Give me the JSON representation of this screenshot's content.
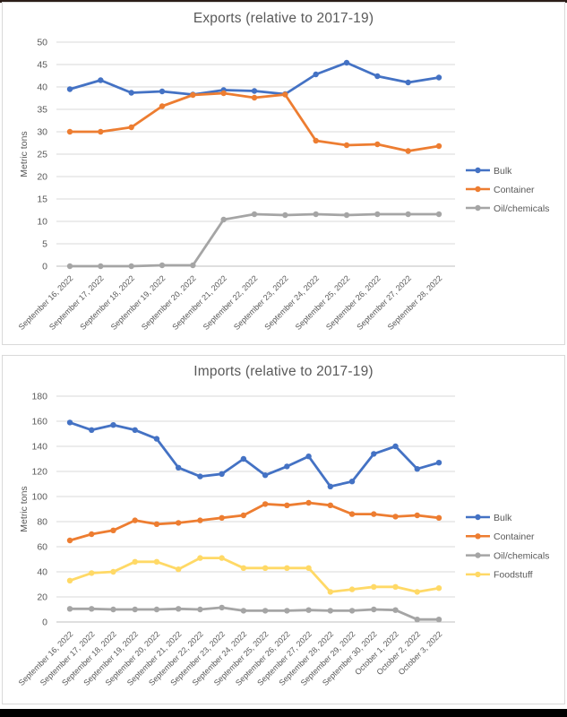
{
  "page": {
    "background": "#FFFFFF",
    "top_strip_color": "#2B1D18",
    "bottom_bar_color": "#000000",
    "panel_border_color": "#D9D9D9",
    "gridline_color": "#D9D9D9",
    "axis_line_color": "#BFBFBF",
    "text_color": "#595959"
  },
  "chart_data": [
    {
      "type": "line",
      "title": "Exports (relative to 2017-19)",
      "xlabel": "",
      "ylabel": "Metric tons",
      "ylim": [
        0,
        50
      ],
      "ytick_step": 5,
      "grid": true,
      "legend_position": "right",
      "categories": [
        "September 16, 2022",
        "September 17, 2022",
        "September 18, 2022",
        "September 19, 2022",
        "September 20, 2022",
        "September 21, 2022",
        "September 22, 2022",
        "September 23, 2022",
        "September 24, 2022",
        "September 25, 2022",
        "September 26, 2022",
        "September 27, 2022",
        "September 28, 2022"
      ],
      "series": [
        {
          "name": "Bulk",
          "color": "#4472C4",
          "values": [
            39.5,
            41.5,
            38.7,
            39.0,
            38.3,
            39.3,
            39.1,
            38.4,
            42.8,
            45.4,
            42.4,
            41.0,
            42.1
          ]
        },
        {
          "name": "Container",
          "color": "#ED7D31",
          "values": [
            30.0,
            30.0,
            31.0,
            35.7,
            38.2,
            38.6,
            37.6,
            38.3,
            28.0,
            27.0,
            27.2,
            25.7,
            26.8
          ]
        },
        {
          "name": "Oil/chemicals",
          "color": "#A5A5A5",
          "values": [
            0,
            0,
            0,
            0.2,
            0.2,
            10.4,
            11.6,
            11.4,
            11.6,
            11.4,
            11.6,
            11.6,
            11.6
          ]
        }
      ]
    },
    {
      "type": "line",
      "title": "Imports (relative to 2017-19)",
      "xlabel": "",
      "ylabel": "Metric tons",
      "ylim": [
        0,
        180
      ],
      "ytick_step": 20,
      "grid": true,
      "legend_position": "right",
      "categories": [
        "September 16, 2022",
        "September 17, 2022",
        "September 18, 2022",
        "September 19, 2022",
        "September 20, 2022",
        "September 21, 2022",
        "September 22, 2022",
        "September 23, 2022",
        "September 24, 2022",
        "September 25, 2022",
        "September 26, 2022",
        "September 27, 2022",
        "September 28, 2022",
        "September 29, 2022",
        "September 30, 2022",
        "October 1, 2022",
        "October 2, 2022",
        "October 3, 2022"
      ],
      "series": [
        {
          "name": "Bulk",
          "color": "#4472C4",
          "values": [
            159,
            153,
            157,
            153,
            146,
            123,
            116,
            118,
            130,
            117,
            124,
            132,
            108,
            112,
            134,
            140,
            122,
            127
          ]
        },
        {
          "name": "Container",
          "color": "#ED7D31",
          "values": [
            65,
            70,
            73,
            81,
            78,
            79,
            81,
            83,
            85,
            94,
            93,
            95,
            93,
            86,
            86,
            84,
            85,
            83
          ]
        },
        {
          "name": "Oil/chemicals",
          "color": "#A5A5A5",
          "values": [
            10.5,
            10.5,
            10,
            10,
            10,
            10.5,
            10,
            11.5,
            9,
            9,
            9,
            9.5,
            9,
            9,
            10,
            9.5,
            2,
            2
          ]
        },
        {
          "name": "Foodstuff",
          "color": "#FFD966",
          "values": [
            33,
            39,
            40,
            48,
            48,
            42,
            51,
            51,
            43,
            43,
            43,
            43,
            24,
            26,
            28,
            28,
            24,
            27
          ]
        }
      ]
    }
  ]
}
